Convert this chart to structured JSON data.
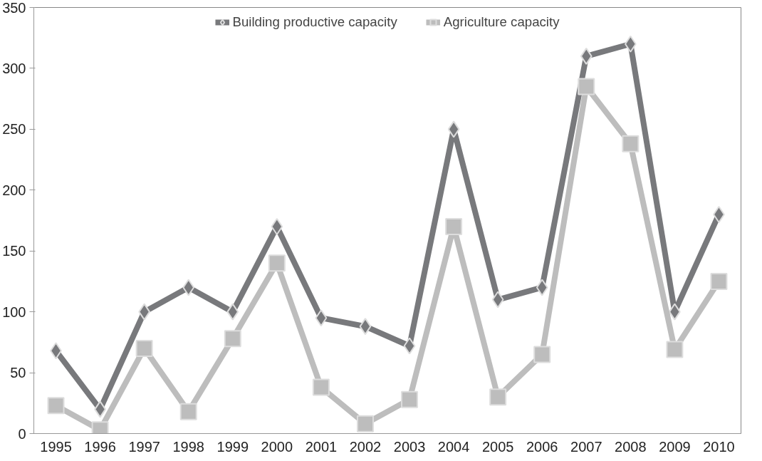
{
  "chart_data": {
    "type": "line",
    "categories": [
      "1995",
      "1996",
      "1997",
      "1998",
      "1999",
      "2000",
      "2001",
      "2002",
      "2003",
      "2004",
      "2005",
      "2006",
      "2007",
      "2008",
      "2009",
      "2010"
    ],
    "series": [
      {
        "name": "Building productive capacity",
        "color": "#78797c",
        "marker": "diamond",
        "values": [
          68,
          20,
          100,
          120,
          100,
          170,
          95,
          88,
          72,
          250,
          110,
          120,
          310,
          320,
          100,
          180
        ]
      },
      {
        "name": "Agriculture capacity",
        "color": "#bdbdbd",
        "marker": "square",
        "values": [
          23,
          3,
          70,
          18,
          78,
          140,
          38,
          8,
          28,
          170,
          30,
          65,
          285,
          238,
          69,
          125
        ]
      }
    ],
    "ylim": [
      0,
      350
    ],
    "yticks": [
      0,
      50,
      100,
      150,
      200,
      250,
      300,
      350
    ],
    "grid": false,
    "legend": "top",
    "line_style": "solid"
  }
}
